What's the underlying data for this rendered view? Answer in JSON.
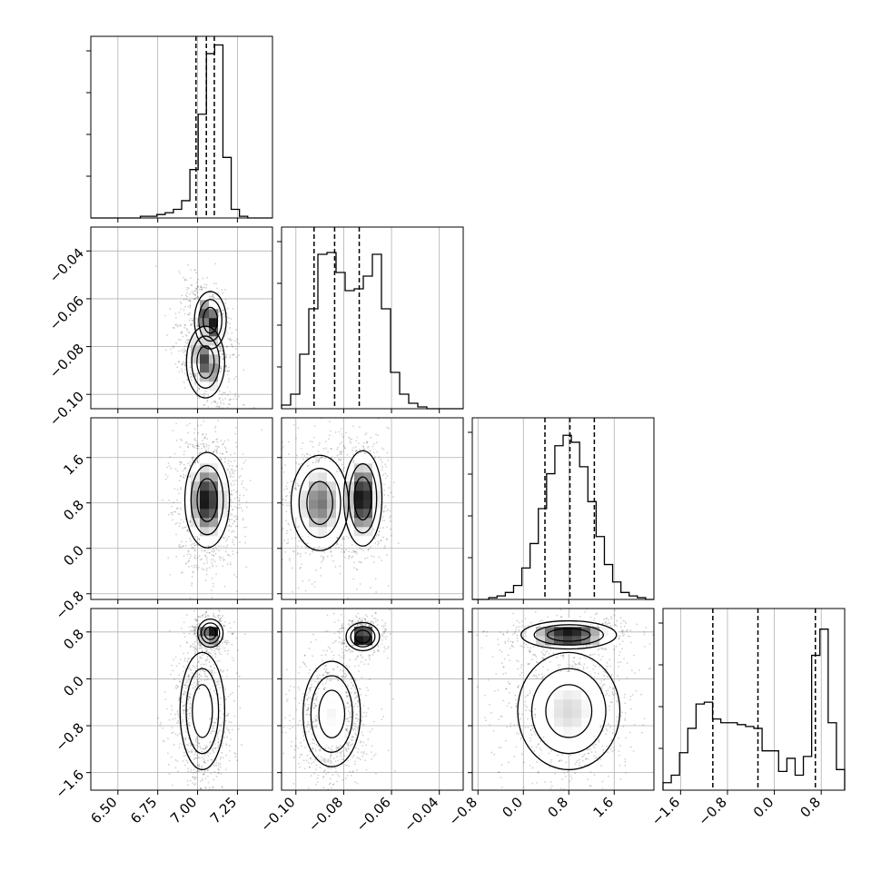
{
  "chart_data": {
    "type": "corner",
    "title": "",
    "parameters": [
      "",
      "",
      "",
      ""
    ],
    "grid": true,
    "quantiles": [
      0.16,
      0.5,
      0.84
    ],
    "axes": {
      "p0": {
        "lim": [
          6.33,
          7.47
        ],
        "ticks": [
          6.5,
          6.75,
          7.0,
          7.25
        ],
        "tick_labels": [
          "6.50",
          "6.75",
          "7.00",
          "7.25"
        ]
      },
      "p1": {
        "lim": [
          -0.106,
          -0.03
        ],
        "ticks": [
          -0.1,
          -0.08,
          -0.06,
          -0.04
        ],
        "tick_labels": [
          "−0.10",
          "−0.08",
          "−0.06",
          "−0.04"
        ]
      },
      "p2": {
        "lim": [
          -0.9,
          2.3
        ],
        "ticks": [
          -0.8,
          0.0,
          0.8,
          1.6
        ],
        "tick_labels": [
          "−0.8",
          "0.0",
          "0.8",
          "1.6"
        ]
      },
      "p3": {
        "lim": [
          -1.9,
          1.2
        ],
        "ticks": [
          -1.6,
          -0.8,
          0.0,
          0.8
        ],
        "tick_labels": [
          "−1.6",
          "−0.8",
          "0.0",
          "0.8"
        ]
      }
    },
    "histograms": [
      {
        "param": "p0",
        "range": [
          6.33,
          7.47
        ],
        "counts": [
          0,
          0,
          0,
          0,
          0,
          0,
          1,
          1,
          2,
          3,
          5,
          10,
          28,
          60,
          95,
          100,
          35,
          5,
          1,
          0,
          0,
          0
        ],
        "ymax": 105,
        "quantile_values": [
          6.99,
          7.055,
          7.105
        ]
      },
      {
        "param": "p1",
        "range": [
          -0.106,
          -0.03
        ],
        "counts": [
          2,
          8,
          30,
          55,
          85,
          86,
          75,
          65,
          66,
          73,
          85,
          55,
          20,
          8,
          3,
          1,
          0,
          0,
          0,
          0
        ],
        "ymax": 100,
        "quantile_values": [
          -0.0924,
          -0.0838,
          -0.0735
        ]
      },
      {
        "param": "p2",
        "range": [
          -0.9,
          2.3
        ],
        "counts": [
          0,
          0,
          1,
          2,
          4,
          8,
          18,
          32,
          52,
          72,
          88,
          94,
          90,
          76,
          56,
          36,
          20,
          10,
          4,
          2,
          1,
          0
        ],
        "ymax": 104,
        "quantile_values": [
          0.38,
          0.82,
          1.25
        ]
      },
      {
        "param": "p3",
        "range": [
          -1.9,
          1.2
        ],
        "counts": [
          4,
          8,
          20,
          33,
          46,
          47,
          38,
          36,
          36,
          35,
          34,
          33,
          21,
          21,
          10,
          17,
          8,
          18,
          72,
          86,
          36,
          11
        ],
        "ymax": 97,
        "quantile_values": [
          -1.05,
          -0.28,
          0.7
        ]
      }
    ],
    "pairs": [
      {
        "x": "p0",
        "y": "p1",
        "rho": -0.55,
        "components": [
          {
            "mx": 7.05,
            "my": -0.0865,
            "sx": 0.06,
            "sy": 0.0075,
            "w": 0.55
          },
          {
            "mx": 7.08,
            "my": -0.069,
            "sx": 0.05,
            "sy": 0.006,
            "w": 0.45
          }
        ]
      },
      {
        "x": "p0",
        "y": "p2",
        "rho": 0.0,
        "components": [
          {
            "mx": 7.06,
            "my": 0.85,
            "sx": 0.07,
            "sy": 0.42,
            "w": 1.0
          }
        ]
      },
      {
        "x": "p1",
        "y": "p2",
        "rho": 0.0,
        "components": [
          {
            "mx": -0.09,
            "my": 0.8,
            "sx": 0.006,
            "sy": 0.42,
            "w": 0.5
          },
          {
            "mx": -0.072,
            "my": 0.88,
            "sx": 0.004,
            "sy": 0.42,
            "w": 0.5
          }
        ]
      },
      {
        "x": "p0",
        "y": "p3",
        "rho": 0.0,
        "components": [
          {
            "mx": 7.03,
            "my": -0.55,
            "sx": 0.07,
            "sy": 0.5,
            "w": 0.62
          },
          {
            "mx": 7.08,
            "my": 0.78,
            "sx": 0.04,
            "sy": 0.12,
            "w": 0.38
          }
        ]
      },
      {
        "x": "p1",
        "y": "p3",
        "rho": 0.0,
        "components": [
          {
            "mx": -0.085,
            "my": -0.6,
            "sx": 0.006,
            "sy": 0.45,
            "w": 0.62
          },
          {
            "mx": -0.072,
            "my": 0.72,
            "sx": 0.0035,
            "sy": 0.12,
            "w": 0.38
          }
        ]
      },
      {
        "x": "p2",
        "y": "p3",
        "rho": 0.0,
        "components": [
          {
            "mx": 0.8,
            "my": -0.55,
            "sx": 0.45,
            "sy": 0.5,
            "w": 0.62
          },
          {
            "mx": 0.8,
            "my": 0.75,
            "sx": 0.42,
            "sy": 0.12,
            "w": 0.38
          }
        ]
      }
    ]
  }
}
